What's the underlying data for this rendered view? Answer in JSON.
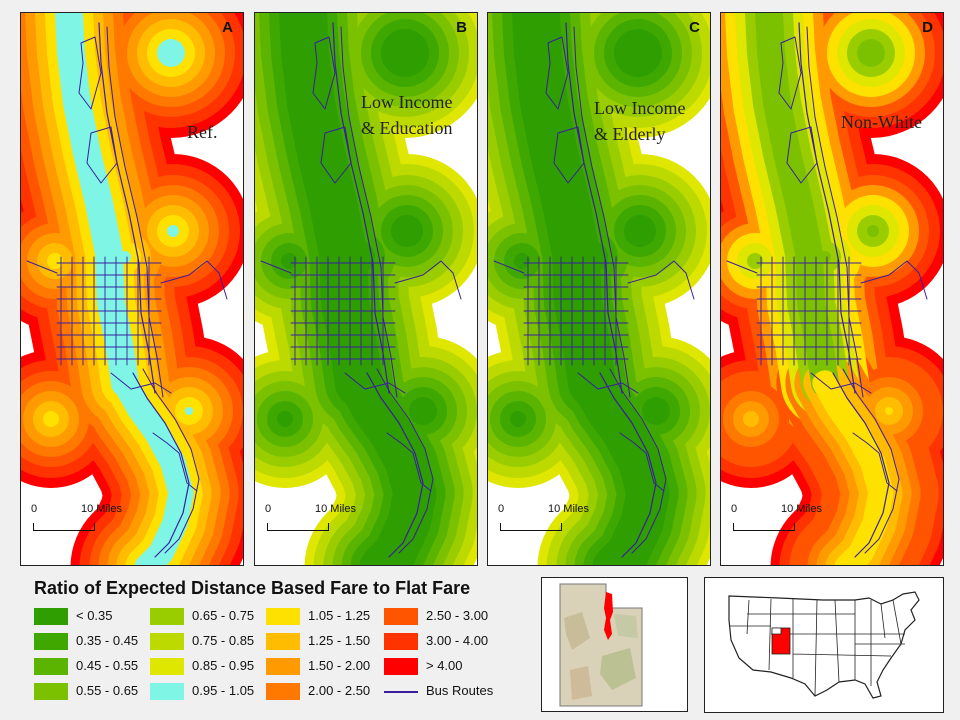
{
  "panels": [
    {
      "letter": "A",
      "label": [
        "Ref."
      ],
      "type": "ref"
    },
    {
      "letter": "B",
      "label": [
        "Low Income",
        "& Education"
      ],
      "type": "low"
    },
    {
      "letter": "C",
      "label": [
        "Low Income",
        "& Elderly"
      ],
      "type": "low"
    },
    {
      "letter": "D",
      "label": [
        "Non-White"
      ],
      "type": "mixed"
    }
  ],
  "scalebar": {
    "zero": "0",
    "max": "10 Miles"
  },
  "legend": {
    "title": "Ratio of Expected Distance Based Fare to Flat Fare",
    "items": [
      {
        "label": "< 0.35",
        "color": "#2e9e00"
      },
      {
        "label": "0.35 - 0.45",
        "color": "#3ea800"
      },
      {
        "label": "0.45 - 0.55",
        "color": "#5ab400"
      },
      {
        "label": "0.55 - 0.65",
        "color": "#7cc100"
      },
      {
        "label": "0.65 - 0.75",
        "color": "#9acd00"
      },
      {
        "label": "0.75 - 0.85",
        "color": "#bcd900"
      },
      {
        "label": "0.85 - 0.95",
        "color": "#dfe600"
      },
      {
        "label": "0.95 - 1.05",
        "color": "#7ff5e6"
      },
      {
        "label": "1.05 - 1.25",
        "color": "#ffe100"
      },
      {
        "label": "1.25 - 1.50",
        "color": "#ffbc00"
      },
      {
        "label": "1.50 - 2.00",
        "color": "#ff9a00"
      },
      {
        "label": "2.00 - 2.50",
        "color": "#ff7800"
      },
      {
        "label": "2.50 - 3.00",
        "color": "#ff5500"
      },
      {
        "label": "3.00 - 4.00",
        "color": "#ff3300"
      },
      {
        "label": "> 4.00",
        "color": "#ff0000"
      },
      {
        "label": "Bus Routes",
        "color": "#3a1ea0",
        "line": true
      }
    ]
  },
  "colors": {
    "bus_routes": "#3a1ea0",
    "study_area": "#ff0000",
    "utah_state": "#e2412c"
  }
}
